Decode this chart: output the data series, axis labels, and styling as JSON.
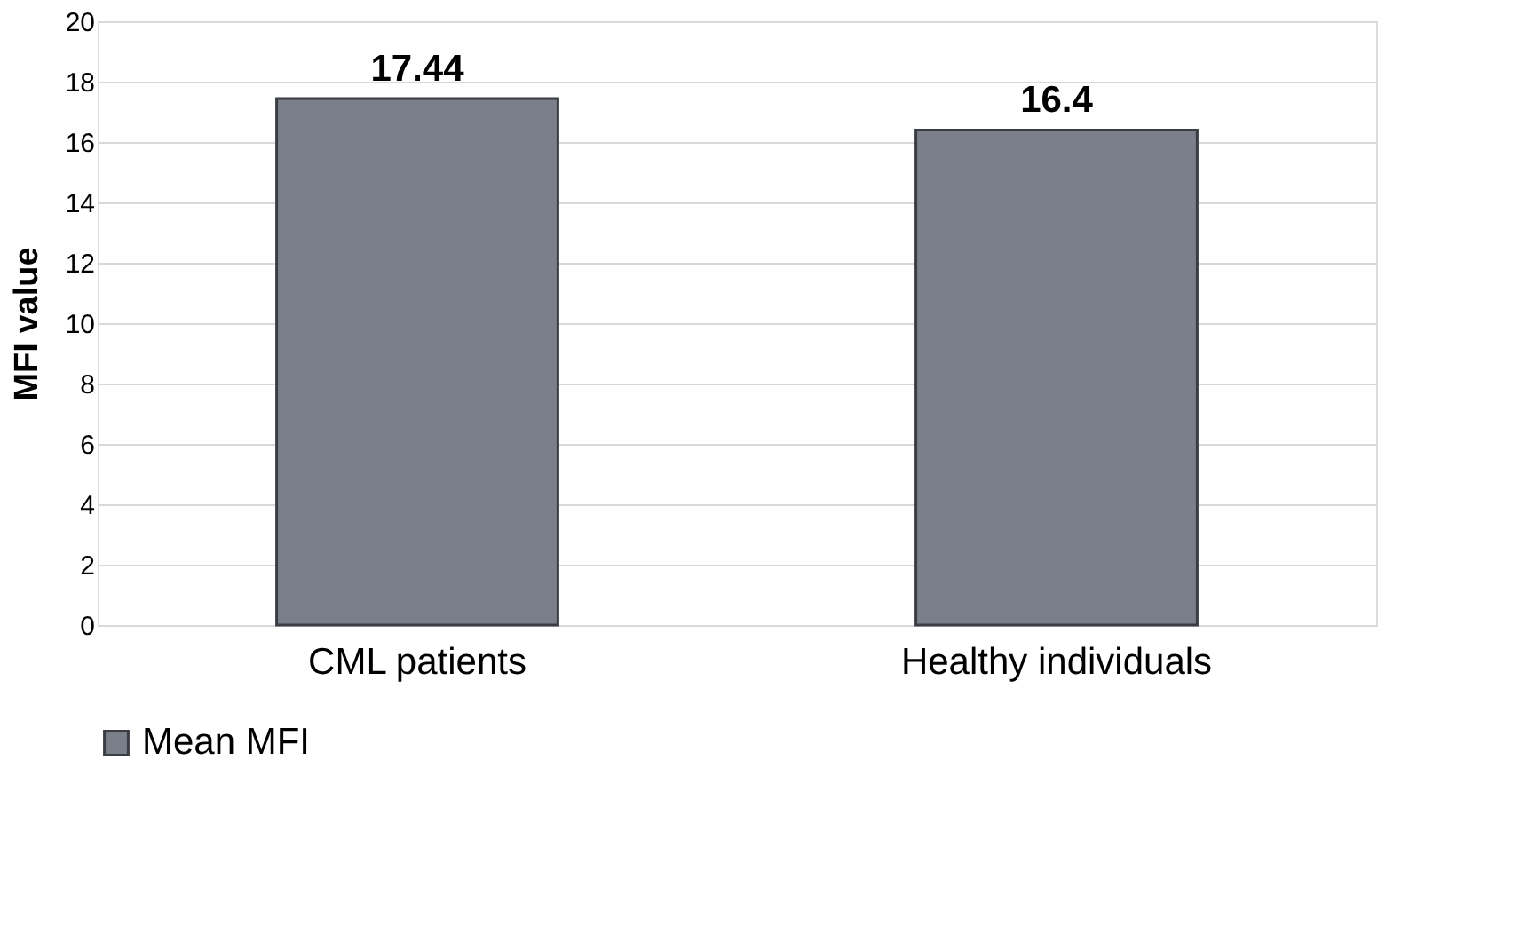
{
  "chart_data": {
    "type": "bar",
    "ylabel": "MFI value",
    "categories": [
      "CML patients",
      "Healthy individuals"
    ],
    "series": [
      {
        "name": "Mean MFI",
        "color": "#7a7f8a",
        "values": [
          17.44,
          16.4
        ]
      }
    ],
    "ylim": [
      0,
      20
    ],
    "yticks": [
      0,
      2,
      4,
      6,
      8,
      10,
      12,
      14,
      16,
      18,
      20
    ],
    "grid": "y",
    "legend": "bottom",
    "data_labels": true
  }
}
